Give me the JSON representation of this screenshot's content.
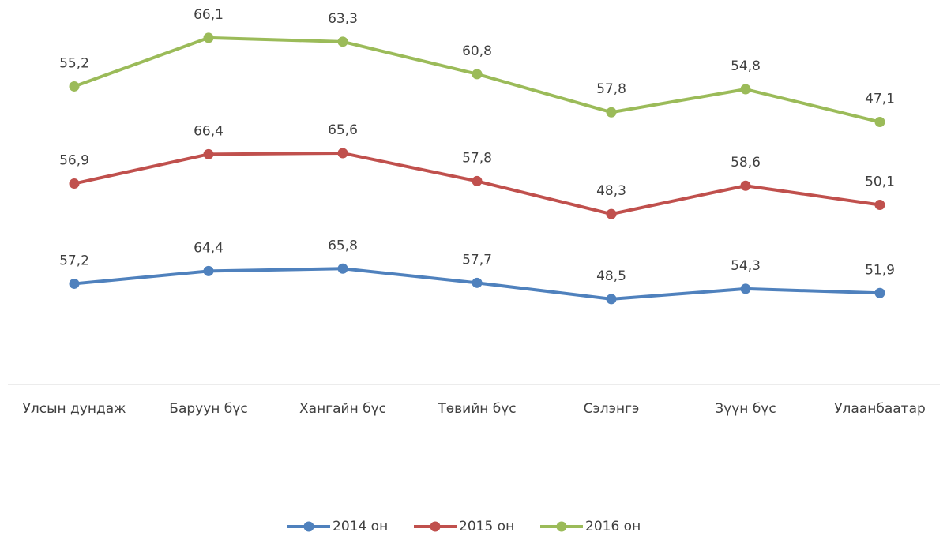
{
  "chart_data": {
    "type": "line",
    "stacked": true,
    "categories": [
      "Улсын дундаж",
      "Баруун бүс",
      "Хангайн бүс",
      "Төвийн бүс",
      "Сэлэнгэ",
      "Зүүн бүс",
      "Улаанбаатар"
    ],
    "series": [
      {
        "name": "2014 он",
        "color": "#4f81bd",
        "values": [
          57.2,
          64.4,
          65.8,
          57.7,
          48.5,
          54.3,
          51.9
        ],
        "value_labels": [
          "57,2",
          "64,4",
          "65,8",
          "57,7",
          "48,5",
          "54,3",
          "51,9"
        ]
      },
      {
        "name": "2015 он",
        "color": "#c0504d",
        "values": [
          56.9,
          66.4,
          65.6,
          57.8,
          48.3,
          58.6,
          50.1
        ],
        "value_labels": [
          "56,9",
          "66,4",
          "65,6",
          "57,8",
          "48,3",
          "58,6",
          "50,1"
        ]
      },
      {
        "name": "2016 он",
        "color": "#9bbb59",
        "values": [
          55.2,
          66.1,
          63.3,
          60.8,
          57.8,
          54.8,
          47.1
        ],
        "value_labels": [
          "55,2",
          "66,1",
          "63,3",
          "60,8",
          "57,8",
          "54,8",
          "47,1"
        ]
      }
    ],
    "ylim": [
      0,
      210
    ],
    "legend": "bottom"
  }
}
